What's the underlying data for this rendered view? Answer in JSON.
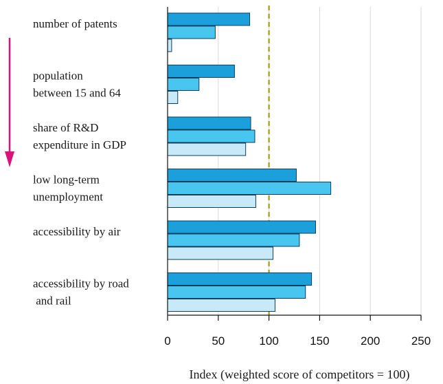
{
  "chart_data": {
    "type": "bar",
    "orientation": "horizontal",
    "categories": [
      [
        "number of patents"
      ],
      [
        "population",
        "between 15 and 64"
      ],
      [
        "share of R&D",
        "expenditure in GDP"
      ],
      [
        "low long-term",
        "unemployment"
      ],
      [
        "accessibility by air"
      ],
      [
        "accessibility by road",
        " and rail"
      ]
    ],
    "series": [
      {
        "color": "#1ba0dc",
        "values": [
          81,
          66,
          82,
          127,
          146,
          142
        ]
      },
      {
        "color": "#48c6f0",
        "values": [
          47,
          31,
          86,
          161,
          130,
          136
        ]
      },
      {
        "color": "#c8e9f8",
        "values": [
          4,
          10,
          77,
          87,
          104,
          106
        ]
      }
    ],
    "xlabel": "Index (weighted score of competitors = 100)",
    "xlim": [
      0,
      250
    ],
    "xticks": [
      0,
      50,
      100,
      150,
      200,
      250
    ],
    "reference_line": {
      "value": 100,
      "style": "dashed",
      "color": "#a8a82a"
    },
    "grid": "vertical",
    "side_arrow": {
      "direction": "down",
      "color": "#d6147a"
    }
  }
}
